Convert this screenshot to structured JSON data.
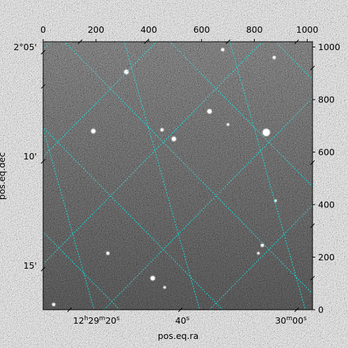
{
  "chart_data": {
    "type": "astronomical-image",
    "xlabel": "pos.eq.ra",
    "ylabel": "pos.eq.dec",
    "pixel_axes": {
      "x_ticks": [
        0,
        200,
        400,
        600,
        800,
        1000
      ],
      "y_ticks": [
        0,
        200,
        400,
        600,
        800,
        1000
      ],
      "xlim": [
        0,
        1020
      ],
      "ylim": [
        0,
        1020
      ]
    },
    "world_axes": {
      "ra_ticks": [
        {
          "value": "12h29m20s",
          "h": "12",
          "m": "29",
          "s": "20",
          "x": 130
        },
        {
          "value": "40s",
          "label": "40",
          "s": "s",
          "x": 540
        },
        {
          "value": "30m00s",
          "m": "30",
          "s": "00",
          "x": 970
        }
      ],
      "dec_ticks": [
        {
          "label": "2°05'",
          "y": 1020
        },
        {
          "label": "10'",
          "y": 580
        },
        {
          "label": "15'",
          "y": 165
        }
      ]
    },
    "grid": true,
    "grid_color": "#00ffff",
    "colormap": "gray",
    "stars": [
      {
        "x": 315,
        "y": 905,
        "r": 3
      },
      {
        "x": 680,
        "y": 990,
        "r": 2
      },
      {
        "x": 875,
        "y": 960,
        "r": 2
      },
      {
        "x": 630,
        "y": 755,
        "r": 3
      },
      {
        "x": 845,
        "y": 675,
        "r": 5
      },
      {
        "x": 190,
        "y": 680,
        "r": 3
      },
      {
        "x": 450,
        "y": 685,
        "r": 2
      },
      {
        "x": 495,
        "y": 650,
        "r": 3
      },
      {
        "x": 245,
        "y": 215,
        "r": 2
      },
      {
        "x": 415,
        "y": 120,
        "r": 3
      },
      {
        "x": 830,
        "y": 245,
        "r": 2
      },
      {
        "x": 40,
        "y": 20,
        "r": 2
      },
      {
        "x": 880,
        "y": 415,
        "r": 1.5
      },
      {
        "x": 815,
        "y": 215,
        "r": 1.5
      },
      {
        "x": 700,
        "y": 705,
        "r": 1.5
      },
      {
        "x": 460,
        "y": 85,
        "r": 1.5
      }
    ]
  }
}
